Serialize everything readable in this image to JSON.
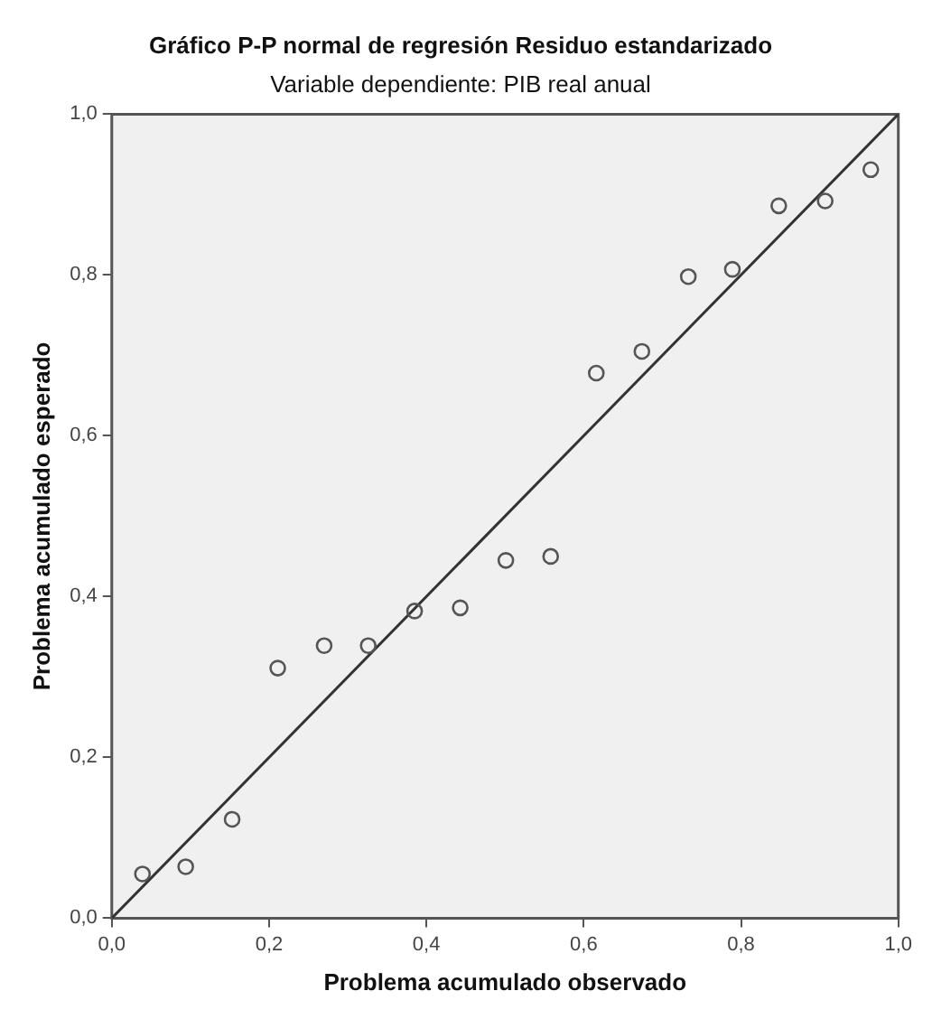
{
  "chart_data": {
    "type": "scatter",
    "title": "Gráfico P-P normal de regresión Residuo estandarizado",
    "subtitle": "Variable dependiente: PIB real anual",
    "xlabel": "Problema acumulado observado",
    "ylabel": "Problema acumulado esperado",
    "series": [
      {
        "color": "#555555",
        "marker": "circle",
        "x": [
          0.039,
          0.094,
          0.153,
          0.211,
          0.27,
          0.326,
          0.385,
          0.443,
          0.501,
          0.558,
          0.616,
          0.674,
          0.733,
          0.789,
          0.848,
          0.907,
          0.965
        ],
        "values": [
          0.055,
          0.064,
          0.123,
          0.311,
          0.339,
          0.339,
          0.382,
          0.386,
          0.445,
          0.45,
          0.678,
          0.705,
          0.798,
          0.807,
          0.886,
          0.892,
          0.931
        ]
      },
      {
        "type": "line",
        "color": "#333333",
        "marker": "none",
        "x": [
          0,
          1
        ],
        "values": [
          0,
          1
        ]
      }
    ],
    "xlim": [
      0,
      1
    ],
    "ylim": [
      0,
      1
    ],
    "xticks": [
      {
        "value": 0,
        "label": "0,0"
      },
      {
        "value": 0.2,
        "label": "0,2"
      },
      {
        "value": 0.4,
        "label": "0,4"
      },
      {
        "value": 0.6,
        "label": "0,6"
      },
      {
        "value": 0.8,
        "label": "0,8"
      },
      {
        "value": 1,
        "label": "1,0"
      }
    ],
    "yticks": [
      {
        "value": 0,
        "label": "0,0"
      },
      {
        "value": 0.2,
        "label": "0,2"
      },
      {
        "value": 0.4,
        "label": "0,4"
      },
      {
        "value": 0.6,
        "label": "0,6"
      },
      {
        "value": 0.8,
        "label": "0,8"
      },
      {
        "value": 1,
        "label": "1,0"
      }
    ],
    "grid": false,
    "legend": false
  }
}
